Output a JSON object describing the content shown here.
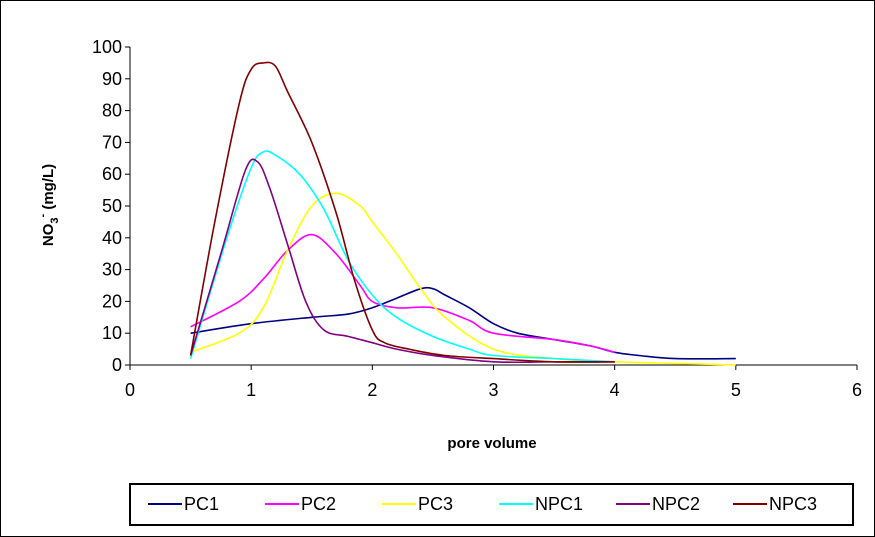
{
  "chart_data": {
    "type": "line",
    "xlabel": "pore volume",
    "ylabel_main": "NO",
    "ylabel_sub": "3",
    "ylabel_sup": "-",
    "ylabel_unit": " (mg/L)",
    "xlim": [
      0,
      6
    ],
    "ylim": [
      0,
      100
    ],
    "xticks": [
      0,
      1,
      2,
      3,
      4,
      5,
      6
    ],
    "yticks": [
      0,
      10,
      20,
      30,
      40,
      50,
      60,
      70,
      80,
      90,
      100
    ],
    "grid": false,
    "legend_position": "bottom",
    "series": [
      {
        "name": "PC1",
        "color": "#000080",
        "x": [
          0.5,
          1.0,
          1.5,
          1.8,
          2.0,
          2.2,
          2.4,
          2.5,
          2.6,
          2.8,
          3.0,
          3.2,
          3.5,
          3.8,
          4.0,
          4.2,
          4.5,
          5.0
        ],
        "y": [
          10,
          13,
          15,
          16,
          18,
          21,
          24,
          24,
          22,
          18,
          13,
          10,
          8,
          6,
          4,
          3,
          2,
          2
        ]
      },
      {
        "name": "PC2",
        "color": "#ff00ff",
        "x": [
          0.5,
          0.9,
          1.1,
          1.3,
          1.5,
          1.7,
          1.9,
          2.0,
          2.2,
          2.5,
          2.8,
          3.0,
          3.5,
          3.8,
          4.0
        ],
        "y": [
          12,
          20,
          27,
          36,
          41,
          35,
          25,
          20,
          18,
          18,
          14,
          10,
          8,
          6,
          4
        ]
      },
      {
        "name": "PC3",
        "color": "#ffff00",
        "x": [
          0.5,
          0.9,
          1.1,
          1.3,
          1.5,
          1.7,
          1.9,
          2.0,
          2.2,
          2.4,
          2.6,
          3.0,
          3.5,
          4.0,
          4.5,
          5.0
        ],
        "y": [
          4,
          10,
          18,
          36,
          50,
          54,
          50,
          45,
          35,
          24,
          15,
          5,
          2,
          1,
          0.5,
          0
        ]
      },
      {
        "name": "NPC1",
        "color": "#00ffff",
        "x": [
          0.5,
          0.8,
          1.0,
          1.1,
          1.2,
          1.4,
          1.6,
          1.8,
          2.0,
          2.2,
          2.5,
          2.8,
          3.0,
          3.5,
          4.0
        ],
        "y": [
          2,
          40,
          62,
          67,
          66,
          60,
          49,
          33,
          22,
          15,
          9,
          5,
          3,
          2,
          1
        ]
      },
      {
        "name": "NPC2",
        "color": "#800080",
        "x": [
          0.5,
          0.75,
          0.95,
          1.05,
          1.15,
          1.3,
          1.45,
          1.6,
          1.8,
          2.0,
          2.2,
          2.5,
          3.0,
          3.5,
          4.0
        ],
        "y": [
          3,
          35,
          61,
          64,
          56,
          38,
          20,
          11,
          9,
          7,
          5,
          3,
          1,
          1,
          1
        ]
      },
      {
        "name": "NPC3",
        "color": "#800000",
        "x": [
          0.5,
          0.7,
          0.9,
          1.0,
          1.1,
          1.2,
          1.3,
          1.5,
          1.7,
          1.85,
          2.0,
          2.1,
          2.3,
          2.6,
          3.0,
          3.5,
          4.0
        ],
        "y": [
          3,
          45,
          82,
          93,
          95,
          94,
          86,
          70,
          48,
          27,
          11,
          7,
          5,
          3,
          2,
          1,
          1
        ]
      }
    ]
  }
}
